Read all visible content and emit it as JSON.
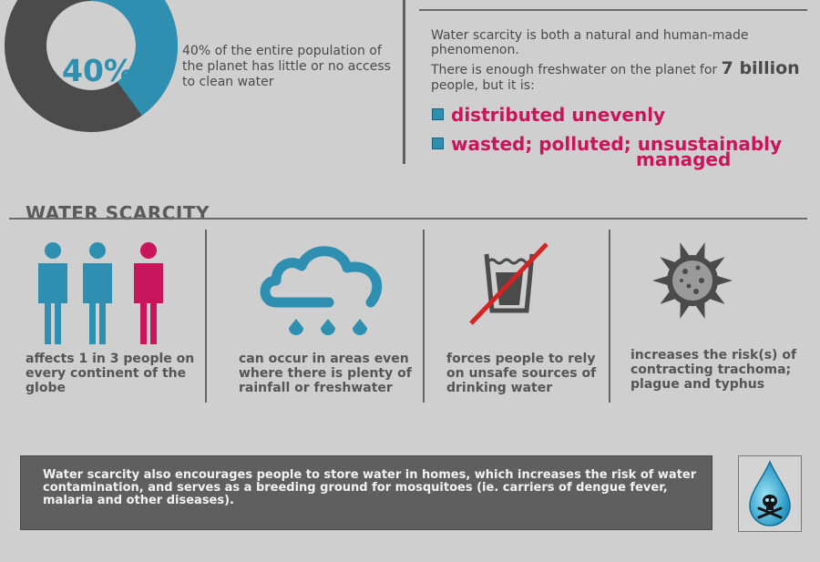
{
  "stat": {
    "percent_label": "40%",
    "percent_value": 40,
    "description": "40% of the entire population of the planet has little or no access to clean water"
  },
  "scarcity": {
    "intro": "Water scarcity is both a natural and human-made phenomenon.",
    "enough_prefix": "There is enough freshwater on the planet for ",
    "enough_highlight": "7 billion",
    "enough_suffix": " people, but it is:",
    "bullets": [
      "distributed unevenly",
      "wasted; polluted; unsustainably",
      "managed"
    ]
  },
  "section_title": "WATER SCARCITY",
  "facts": [
    {
      "icon": "people-icon",
      "caption": "affects 1 in 3 people on every continent of the globe"
    },
    {
      "icon": "rain-cloud-icon",
      "caption": "can occur in areas even where there is plenty of rainfall or freshwater"
    },
    {
      "icon": "crossed-glass-icon",
      "caption": "forces people to rely on unsafe sources of drinking water"
    },
    {
      "icon": "germ-icon",
      "caption": "increases the risk(s) of contracting trachoma; plague and typhus"
    }
  ],
  "bottom": {
    "text": "Water scarcity also encourages people to store water in homes, which increases the risk of water contamination, and serves as a breeding ground for mosquitoes (ie. carriers of dengue fever, malaria and other diseases).",
    "icon": "poison-drop-icon"
  },
  "colors": {
    "blue": "#2f8fb0",
    "dark_gray": "#4a4a4a",
    "magenta": "#c8155c",
    "red_strike": "#d32323"
  }
}
